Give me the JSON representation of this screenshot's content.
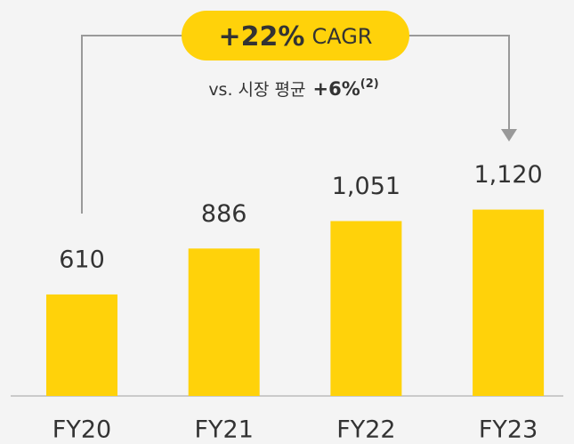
{
  "chart_data": {
    "type": "bar",
    "categories": [
      "FY20",
      "FY21",
      "FY22",
      "FY23"
    ],
    "values": [
      610,
      886,
      1051,
      1120
    ],
    "value_labels": [
      "610",
      "886",
      "1,051",
      "1,120"
    ],
    "color": "#ffd20a",
    "annotation": {
      "cagr": "+22%",
      "cagr_label": "CAGR",
      "comparison": "vs. 시장 평균",
      "comparison_value": "+6%",
      "footnote": "(2)"
    }
  }
}
